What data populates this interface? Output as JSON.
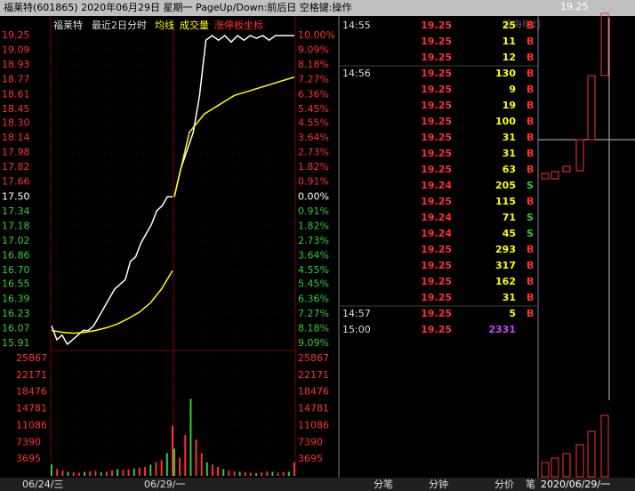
{
  "header": {
    "title": "福莱特(601865)  2020年06月29日 星期一  PageUp/Down:前后日 空格键:操作"
  },
  "legend": {
    "name": "福莱特",
    "period": "最近2日分时",
    "avg": "均线",
    "volume": "成交量",
    "limit": "涨停板坐标"
  },
  "price_axis": {
    "ylim": [
      15.91,
      19.25
    ],
    "ticks": [
      {
        "value": 19.25,
        "label": "19.25"
      },
      {
        "value": 19.09,
        "label": "19.09"
      },
      {
        "value": 18.93,
        "label": "18.93"
      },
      {
        "value": 18.77,
        "label": "18.77"
      },
      {
        "value": 18.61,
        "label": "18.61"
      },
      {
        "value": 18.45,
        "label": "18.45"
      },
      {
        "value": 18.3,
        "label": "18.30"
      },
      {
        "value": 18.14,
        "label": "18.14"
      },
      {
        "value": 17.98,
        "label": "17.98"
      },
      {
        "value": 17.82,
        "label": "17.82"
      },
      {
        "value": 17.66,
        "label": "17.66"
      },
      {
        "value": 17.5,
        "label": "17.50"
      },
      {
        "value": 17.34,
        "label": "17.34"
      },
      {
        "value": 17.18,
        "label": "17.18"
      },
      {
        "value": 17.02,
        "label": "17.02"
      },
      {
        "value": 16.86,
        "label": "16.86"
      },
      {
        "value": 16.7,
        "label": "16.70"
      },
      {
        "value": 16.55,
        "label": "16.55"
      },
      {
        "value": 16.39,
        "label": "16.39"
      },
      {
        "value": 16.23,
        "label": "16.23"
      },
      {
        "value": 16.07,
        "label": "16.07"
      },
      {
        "value": 15.91,
        "label": "15.91"
      }
    ],
    "pct_labels": [
      "10.00%",
      "9.09%",
      "8.18%",
      "7.27%",
      "6.36%",
      "5.45%",
      "4.55%",
      "3.64%",
      "2.73%",
      "1.82%",
      "0.91%",
      "0.00%",
      "0.91%",
      "1.82%",
      "2.73%",
      "3.64%",
      "4.55%",
      "5.45%",
      "6.36%",
      "7.27%",
      "8.18%",
      "9.09%"
    ]
  },
  "prices": [
    [
      16.1,
      15.95,
      16.0,
      15.9,
      15.95,
      16.0,
      16.05,
      16.05,
      16.1,
      16.2,
      16.3,
      16.4,
      16.5,
      16.55,
      16.6,
      16.8,
      16.85,
      17.0,
      17.1,
      17.2,
      17.35,
      17.4,
      17.5,
      17.5
    ],
    [
      17.5,
      17.8,
      18.0,
      18.2,
      18.6,
      19.2,
      19.25,
      19.2,
      19.25,
      19.18,
      19.25,
      19.2,
      19.25,
      19.22,
      19.25,
      19.2,
      19.25,
      19.25,
      19.25,
      19.25
    ]
  ],
  "averages": [
    [
      16.05,
      16.03,
      16.02,
      16.03,
      16.05,
      16.08,
      16.12,
      16.18,
      16.25,
      16.35,
      16.5,
      16.7
    ],
    [
      17.5,
      18.2,
      18.4,
      18.5,
      18.6,
      18.65,
      18.7,
      18.75,
      18.8
    ]
  ],
  "volume_axis": {
    "ylim": [
      0,
      25867
    ],
    "ticks": [
      25867,
      22171,
      18476,
      14781,
      11086,
      7390,
      3695
    ]
  },
  "volumes": [
    [
      2500,
      1500,
      1200,
      900,
      800,
      700,
      900,
      1000,
      1100,
      800,
      900,
      1200,
      1500,
      1300,
      1400,
      1600,
      1800,
      2000,
      2500,
      3000,
      3500,
      5000,
      11000
    ],
    [
      6000,
      4000,
      9000,
      17000,
      8000,
      5000,
      3000,
      2500,
      2000,
      1500,
      1200,
      1000,
      900,
      800,
      700,
      600,
      800,
      1000,
      900,
      700,
      800,
      900,
      3000
    ]
  ],
  "dates": [
    "06/24/三",
    "06/29/一"
  ],
  "ticks_table": [
    {
      "time": "14:55",
      "price": "19.25",
      "vol": "25",
      "side": "B"
    },
    {
      "price": "19.25",
      "vol": "11",
      "side": "B"
    },
    {
      "price": "19.25",
      "vol": "12",
      "side": "B"
    },
    {
      "time": "14:56",
      "price": "19.25",
      "vol": "130",
      "side": "B"
    },
    {
      "price": "19.25",
      "vol": "9",
      "side": "B"
    },
    {
      "price": "19.25",
      "vol": "19",
      "side": "B"
    },
    {
      "price": "19.25",
      "vol": "100",
      "side": "B"
    },
    {
      "price": "19.25",
      "vol": "31",
      "side": "B"
    },
    {
      "price": "19.25",
      "vol": "31",
      "side": "B"
    },
    {
      "price": "19.25",
      "vol": "63",
      "side": "B"
    },
    {
      "price": "19.24",
      "vol": "205",
      "side": "S"
    },
    {
      "price": "19.25",
      "vol": "115",
      "side": "B"
    },
    {
      "price": "19.24",
      "vol": "71",
      "side": "S"
    },
    {
      "price": "19.24",
      "vol": "45",
      "side": "S"
    },
    {
      "price": "19.25",
      "vol": "293",
      "side": "B"
    },
    {
      "price": "19.25",
      "vol": "317",
      "side": "B"
    },
    {
      "price": "19.25",
      "vol": "162",
      "side": "B"
    },
    {
      "price": "19.25",
      "vol": "31",
      "side": "B"
    },
    {
      "time": "14:57",
      "price": "19.25",
      "vol": "5",
      "side": "B"
    },
    {
      "time": "15:00",
      "price": "19.25",
      "vol": "2331"
    }
  ],
  "mini": {
    "high": "19.25",
    "watermark": "股海明灯",
    "date": "2020/06/29/一"
  },
  "tabs": [
    "分笔",
    "分钟",
    "分价",
    "笔"
  ]
}
